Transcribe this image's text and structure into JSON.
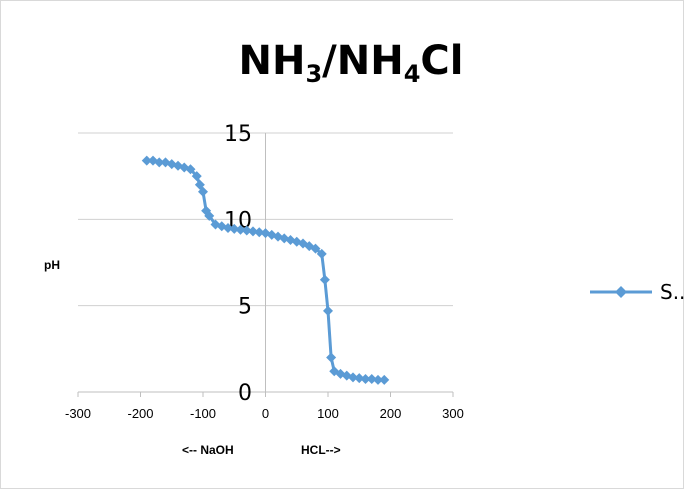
{
  "chart_data": {
    "type": "line",
    "title_main": "NH",
    "title_sub1": "3",
    "title_mid": "/NH",
    "title_sub2": "4",
    "title_end": "Cl",
    "ylabel": "pH",
    "xlabel_left": "<-- NaOH",
    "xlabel_right": "HCL-->",
    "xlim": [
      -300,
      300
    ],
    "ylim": [
      0,
      15
    ],
    "x_ticks": [
      "-300",
      "-200",
      "-100",
      "0",
      "100",
      "200",
      "300"
    ],
    "y_ticks": [
      "0",
      "5",
      "10",
      "15"
    ],
    "grid": true,
    "legend_position": "right",
    "series": [
      {
        "name": "S...",
        "color": "#5B9BD5",
        "x": [
          -190,
          -180,
          -170,
          -160,
          -150,
          -140,
          -130,
          -120,
          -110,
          -105,
          -100,
          -95,
          -90,
          -80,
          -70,
          -60,
          -50,
          -40,
          -30,
          -20,
          -10,
          0,
          10,
          20,
          30,
          40,
          50,
          60,
          70,
          80,
          90,
          95,
          100,
          105,
          110,
          120,
          130,
          140,
          150,
          160,
          170,
          180,
          190
        ],
        "y": [
          13.4,
          13.4,
          13.3,
          13.3,
          13.2,
          13.1,
          13.0,
          12.9,
          12.5,
          12.0,
          11.6,
          10.5,
          10.2,
          9.7,
          9.6,
          9.5,
          9.45,
          9.4,
          9.35,
          9.3,
          9.25,
          9.2,
          9.1,
          9.0,
          8.9,
          8.8,
          8.7,
          8.6,
          8.45,
          8.3,
          8.0,
          6.5,
          4.7,
          2.0,
          1.2,
          1.05,
          0.95,
          0.85,
          0.8,
          0.75,
          0.75,
          0.7,
          0.7
        ]
      }
    ]
  }
}
